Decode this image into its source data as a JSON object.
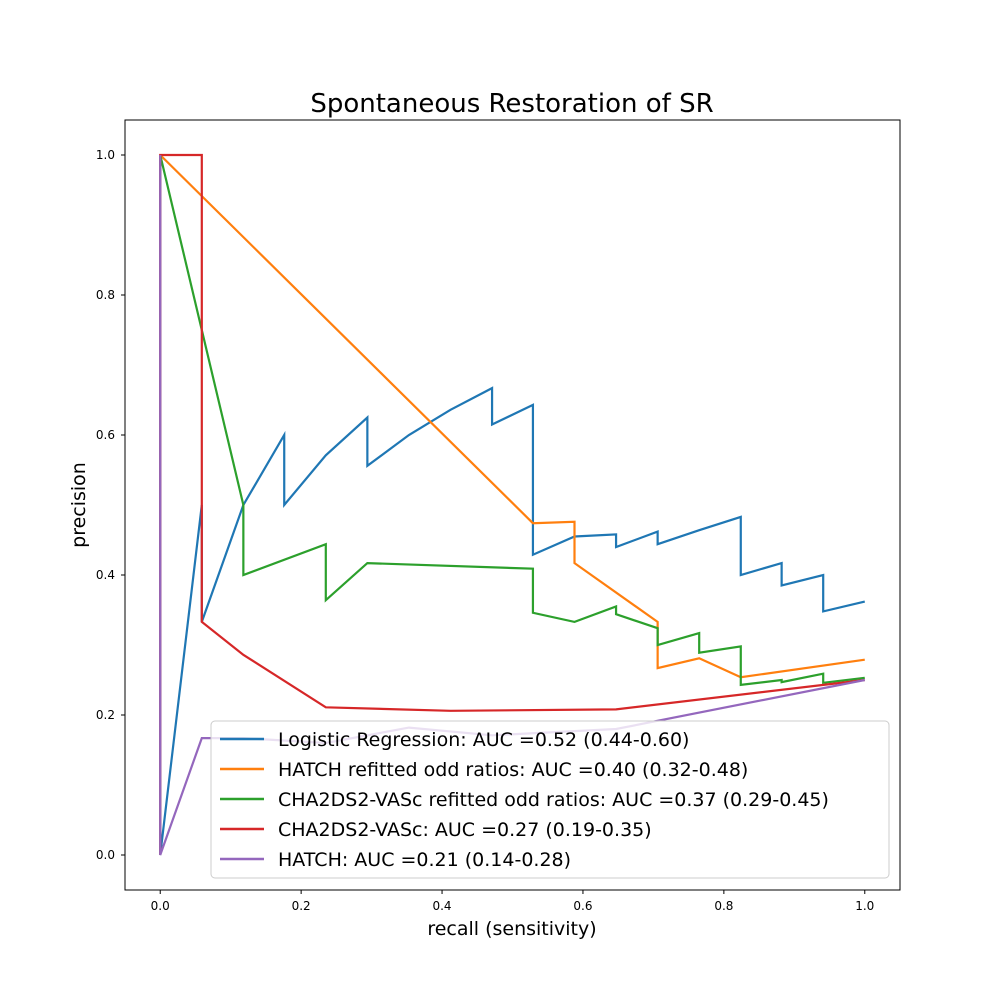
{
  "chart_data": {
    "type": "line",
    "title": "Spontaneous Restoration of SR",
    "xlabel": "recall (sensitivity)",
    "ylabel": "precision",
    "xlim": [
      -0.05,
      1.05
    ],
    "ylim": [
      -0.05,
      1.05
    ],
    "xticks": [
      0.0,
      0.2,
      0.4,
      0.6,
      0.8,
      1.0
    ],
    "yticks": [
      0.0,
      0.2,
      0.4,
      0.6,
      0.8,
      1.0
    ],
    "xtick_labels": [
      "0.0",
      "0.2",
      "0.4",
      "0.6",
      "0.8",
      "1.0"
    ],
    "ytick_labels": [
      "0.0",
      "0.2",
      "0.4",
      "0.6",
      "0.8",
      "1.0"
    ],
    "legend_position": "lower-right",
    "series": [
      {
        "name": "Logistic Regression: AUC =0.52 (0.44-0.60)",
        "color": "#1f77b4",
        "x": [
          0.0,
          0.0,
          0.059,
          0.059,
          0.118,
          0.176,
          0.176,
          0.235,
          0.294,
          0.294,
          0.353,
          0.412,
          0.471,
          0.471,
          0.529,
          0.529,
          0.588,
          0.647,
          0.647,
          0.706,
          0.706,
          0.765,
          0.824,
          0.824,
          0.882,
          0.882,
          0.941,
          0.941,
          1.0
        ],
        "y": [
          1.0,
          0.0,
          0.5,
          0.333,
          0.5,
          0.6,
          0.5,
          0.571,
          0.625,
          0.556,
          0.6,
          0.636,
          0.667,
          0.615,
          0.643,
          0.429,
          0.455,
          0.458,
          0.44,
          0.462,
          0.444,
          0.464,
          0.483,
          0.4,
          0.417,
          0.385,
          0.4,
          0.348,
          0.362
        ]
      },
      {
        "name": "HATCH refitted odd ratios: AUC =0.40 (0.32-0.48)",
        "color": "#ff7f0e",
        "x": [
          0.0,
          0.529,
          0.588,
          0.588,
          0.706,
          0.706,
          0.765,
          0.824,
          1.0
        ],
        "y": [
          1.0,
          0.474,
          0.476,
          0.417,
          0.333,
          0.267,
          0.281,
          0.254,
          0.279
        ]
      },
      {
        "name": "CHA2DS2-VASc refitted odd ratios: AUC =0.37 (0.29-0.45)",
        "color": "#2ca02c",
        "x": [
          0.0,
          0.118,
          0.118,
          0.235,
          0.235,
          0.294,
          0.529,
          0.529,
          0.588,
          0.647,
          0.647,
          0.706,
          0.706,
          0.765,
          0.765,
          0.824,
          0.824,
          0.882,
          0.882,
          0.941,
          0.941,
          1.0
        ],
        "y": [
          1.0,
          0.5,
          0.4,
          0.444,
          0.364,
          0.417,
          0.409,
          0.346,
          0.333,
          0.355,
          0.344,
          0.324,
          0.3,
          0.317,
          0.289,
          0.298,
          0.243,
          0.25,
          0.247,
          0.259,
          0.246,
          0.253
        ]
      },
      {
        "name": "CHA2DS2-VASc: AUC =0.27 (0.19-0.35)",
        "color": "#d62728",
        "x": [
          0.0,
          0.0,
          0.059,
          0.059,
          0.118,
          0.235,
          0.412,
          0.647,
          1.0
        ],
        "y": [
          0.0,
          1.0,
          1.0,
          0.333,
          0.286,
          0.211,
          0.206,
          0.208,
          0.25
        ]
      },
      {
        "name": "HATCH: AUC =0.21 (0.14-0.28)",
        "color": "#9467bd",
        "x": [
          0.0,
          0.0,
          0.059,
          0.118,
          0.235,
          0.353,
          0.471,
          0.647,
          1.0
        ],
        "y": [
          1.0,
          0.0,
          0.167,
          0.167,
          0.16,
          0.182,
          0.171,
          0.18,
          0.25
        ]
      }
    ]
  }
}
